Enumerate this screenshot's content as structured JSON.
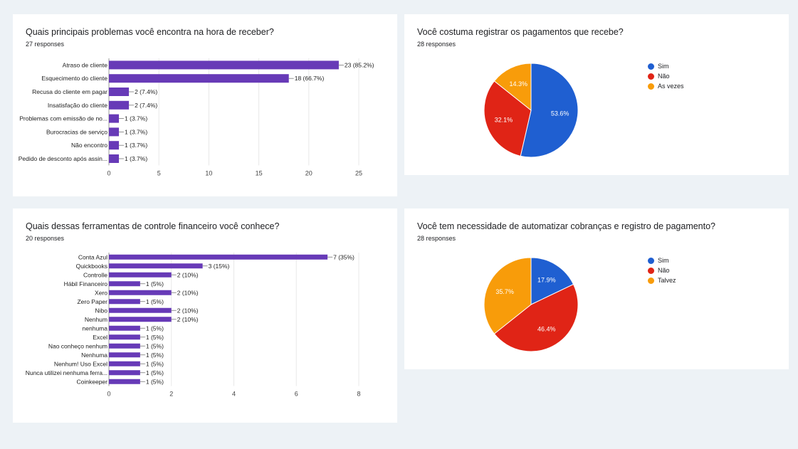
{
  "colors": {
    "bar": "#673ab7",
    "grid": "#e8e8e8",
    "axis": "#999999",
    "blue": "#1f5fd1",
    "red": "#e02416",
    "orange": "#f89c0a"
  },
  "chart_data": [
    {
      "type": "bar",
      "orientation": "horizontal",
      "title": "Quais principais problemas você encontra na hora de receber?",
      "subtitle": "27 responses",
      "categories": [
        "Atraso de cliente",
        "Esquecimento do cliente",
        "Recusa do cliente em pagar",
        "Insatisfação do cliente",
        "Problemas com emissão de no...",
        "Burocracias de serviço",
        "Não encontro",
        "Pedido de desconto após assin..."
      ],
      "values": [
        23,
        18,
        2,
        2,
        1,
        1,
        1,
        1
      ],
      "data_labels": [
        "23 (85.2%)",
        "18 (66.7%)",
        "2 (7.4%)",
        "2 (7.4%)",
        "1 (3.7%)",
        "1 (3.7%)",
        "1 (3.7%)",
        "1 (3.7%)"
      ],
      "xlim": [
        0,
        25
      ],
      "xticks": [
        0,
        5,
        10,
        15,
        20,
        25
      ],
      "grid": true
    },
    {
      "type": "pie",
      "title": "Você costuma registrar os pagamentos que recebe?",
      "subtitle": "28 responses",
      "slices": [
        {
          "label": "Sim",
          "value": 53.6,
          "display": "53.6%",
          "color": "#1f5fd1"
        },
        {
          "label": "Não",
          "value": 32.1,
          "display": "32.1%",
          "color": "#e02416"
        },
        {
          "label": "As vezes",
          "value": 14.3,
          "display": "14.3%",
          "color": "#f89c0a"
        }
      ],
      "legend": "right"
    },
    {
      "type": "bar",
      "orientation": "horizontal",
      "title": "Quais dessas ferramentas de controle financeiro você conhece?",
      "subtitle": "20 responses",
      "categories": [
        "Conta Azul",
        "Quickbooks",
        "Controlle",
        "Hábil Financeiro",
        "Xero",
        "Zero Paper",
        "Nibo",
        "Nenhum",
        "nenhuma",
        "Excel",
        "Nao conheço nenhum",
        "Nenhuma",
        "Nenhum! Uso Excel",
        "Nunca utilizei nenhuma ferra...",
        "Coinkeeper"
      ],
      "values": [
        7,
        3,
        2,
        1,
        2,
        1,
        2,
        2,
        1,
        1,
        1,
        1,
        1,
        1,
        1
      ],
      "data_labels": [
        "7 (35%)",
        "3 (15%)",
        "2 (10%)",
        "1 (5%)",
        "2 (10%)",
        "1 (5%)",
        "2 (10%)",
        "2 (10%)",
        "1 (5%)",
        "1 (5%)",
        "1 (5%)",
        "1 (5%)",
        "1 (5%)",
        "1 (5%)",
        "1 (5%)"
      ],
      "xlim": [
        0,
        8
      ],
      "xticks": [
        0,
        2,
        4,
        6,
        8
      ],
      "grid": true
    },
    {
      "type": "pie",
      "title": "Você tem necessidade de automatizar cobranças e registro de pagamento?",
      "subtitle": "28 responses",
      "slices": [
        {
          "label": "Sim",
          "value": 17.9,
          "display": "17.9%",
          "color": "#1f5fd1"
        },
        {
          "label": "Não",
          "value": 46.4,
          "display": "46.4%",
          "color": "#e02416"
        },
        {
          "label": "Talvez",
          "value": 35.7,
          "display": "35.7%",
          "color": "#f89c0a"
        }
      ],
      "legend": "right"
    }
  ]
}
